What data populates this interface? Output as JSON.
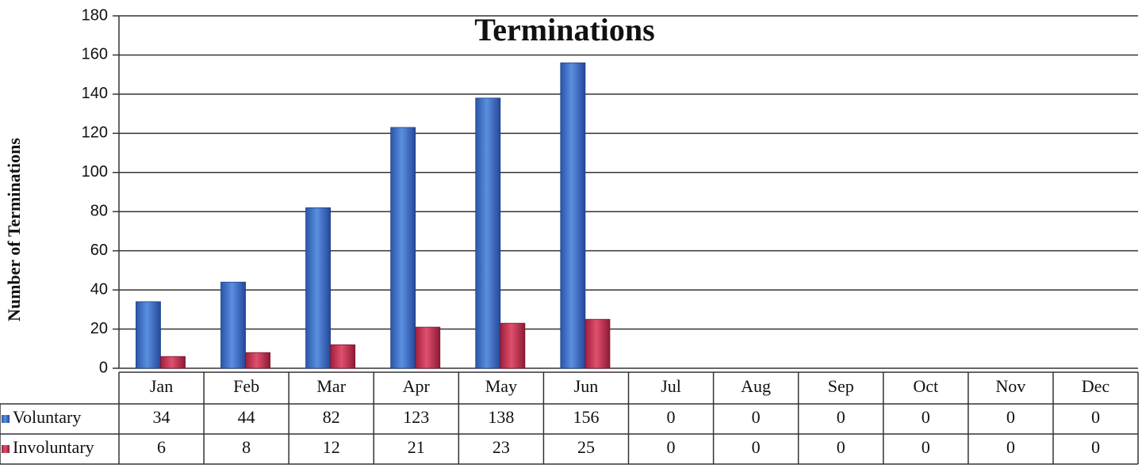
{
  "chart_data": {
    "type": "bar",
    "title": "Terminations",
    "y_label": "Number of Terminations",
    "categories": [
      "Jan",
      "Feb",
      "Mar",
      "Apr",
      "May",
      "Jun",
      "Jul",
      "Aug",
      "Sep",
      "Oct",
      "Nov",
      "Dec"
    ],
    "series": [
      {
        "name": "Voluntary",
        "color": "#3b6fc6",
        "values": [
          34,
          44,
          82,
          123,
          138,
          156,
          0,
          0,
          0,
          0,
          0,
          0
        ]
      },
      {
        "name": "Involuntary",
        "color": "#c3304f",
        "values": [
          6,
          8,
          12,
          21,
          23,
          25,
          0,
          0,
          0,
          0,
          0,
          0
        ]
      }
    ],
    "ylim": [
      0,
      180
    ],
    "yticks": [
      0,
      20,
      40,
      60,
      80,
      100,
      120,
      140,
      160,
      180
    ],
    "grid": true
  }
}
